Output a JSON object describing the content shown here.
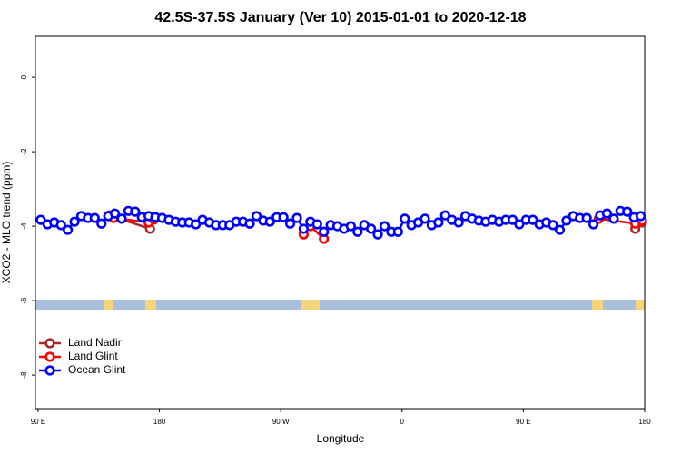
{
  "chart_data": {
    "type": "line",
    "title": "42.5S-37.5S January (Ver 10)   2015-01-01 to 2020-12-18",
    "x_label": "Longitude",
    "y_label": "XCO2 - MLO trend (ppm)",
    "xlim": [
      88,
      540
    ],
    "ylim": [
      -8.9,
      1.1
    ],
    "xticks": [
      {
        "value": 90,
        "label": "90 E"
      },
      {
        "value": 180,
        "label": "180"
      },
      {
        "value": 270,
        "label": "90 W"
      },
      {
        "value": 360,
        "label": "0"
      },
      {
        "value": 450,
        "label": "90 E"
      },
      {
        "value": 540,
        "label": "180"
      }
    ],
    "yticks": [
      0,
      -2,
      -4,
      -6,
      -8
    ],
    "legend": "bottom-left",
    "series": [
      {
        "name": "Land Nadir",
        "color": "#a52a2a",
        "x": [
          143,
          173,
          null,
          533,
          538
        ],
        "values": [
          -3.71,
          -4.07,
          null,
          -4.07,
          -3.9
        ]
      },
      {
        "name": "Land Glint",
        "color": "#ff0000",
        "x": [
          146,
          172,
          176,
          null,
          287,
          292,
          302,
          null,
          506,
          533,
          538
        ],
        "values": [
          -3.78,
          -3.9,
          -3.82,
          null,
          -4.22,
          -4.0,
          -4.34,
          null,
          -3.8,
          -3.93,
          -3.85
        ]
      },
      {
        "name": "Ocean Glint",
        "color": "#0000ff",
        "x": [
          92,
          97,
          102,
          107,
          112,
          117,
          122,
          127,
          132,
          137,
          142,
          147,
          152,
          157,
          162,
          167,
          172,
          177,
          182,
          187,
          192,
          197,
          202,
          207,
          212,
          217,
          222,
          227,
          232,
          237,
          242,
          247,
          252,
          257,
          262,
          267,
          272,
          277,
          282,
          287,
          292,
          297,
          302,
          307,
          312,
          317,
          322,
          327,
          332,
          337,
          342,
          347,
          352,
          357,
          362,
          367,
          372,
          377,
          382,
          387,
          392,
          397,
          402,
          407,
          412,
          417,
          422,
          427,
          432,
          437,
          442,
          447,
          452,
          457,
          462,
          467,
          472,
          477,
          482,
          487,
          492,
          497,
          502,
          507,
          512,
          517,
          522,
          527,
          532,
          537
        ],
        "values": [
          -3.83,
          -3.95,
          -3.9,
          -3.97,
          -4.1,
          -3.88,
          -3.73,
          -3.78,
          -3.78,
          -3.93,
          -3.73,
          -3.66,
          -3.8,
          -3.59,
          -3.61,
          -3.76,
          -3.73,
          -3.76,
          -3.78,
          -3.83,
          -3.88,
          -3.9,
          -3.9,
          -3.95,
          -3.83,
          -3.9,
          -3.97,
          -3.97,
          -3.97,
          -3.88,
          -3.88,
          -3.93,
          -3.73,
          -3.85,
          -3.88,
          -3.76,
          -3.76,
          -3.93,
          -3.78,
          -4.07,
          -3.88,
          -3.95,
          -4.15,
          -3.97,
          -4.0,
          -4.07,
          -4.0,
          -4.15,
          -3.97,
          -4.07,
          -4.22,
          -4.0,
          -4.15,
          -4.15,
          -3.8,
          -3.97,
          -3.9,
          -3.8,
          -3.97,
          -3.9,
          -3.71,
          -3.83,
          -3.9,
          -3.73,
          -3.8,
          -3.85,
          -3.88,
          -3.83,
          -3.88,
          -3.83,
          -3.83,
          -3.95,
          -3.83,
          -3.83,
          -3.95,
          -3.9,
          -3.97,
          -4.1,
          -3.85,
          -3.73,
          -3.78,
          -3.78,
          -3.95,
          -3.71,
          -3.66,
          -3.8,
          -3.59,
          -3.61,
          -3.76,
          -3.73
        ]
      }
    ]
  }
}
